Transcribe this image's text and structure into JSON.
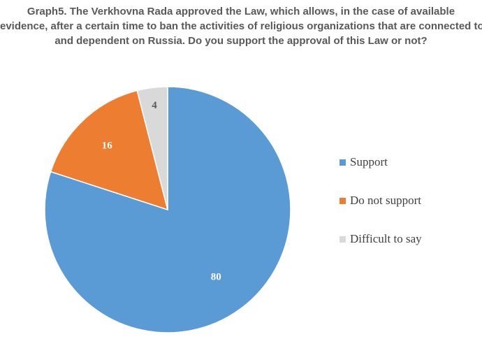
{
  "chart_data": {
    "type": "pie",
    "title_lines": [
      "Graph5. The Verkhovna Rada approved the Law, which allows, in the case of available",
      "evidence, after a certain time to ban the activities of religious organizations that are connected to",
      "and dependent on Russia. Do you support the approval of this Law or not?"
    ],
    "categories": [
      "Support",
      "Do not support",
      "Difficult to say"
    ],
    "values": [
      80,
      16,
      4
    ],
    "data_labels": [
      "80",
      "16",
      "4"
    ],
    "colors": [
      "#5B9BD5",
      "#ED7D31",
      "#D9D9D9"
    ],
    "label_colors": [
      "#ffffff",
      "#ffffff",
      "#595959"
    ],
    "start_angle": "12 o'clock",
    "direction": "clockwise",
    "legend_position": "right"
  }
}
